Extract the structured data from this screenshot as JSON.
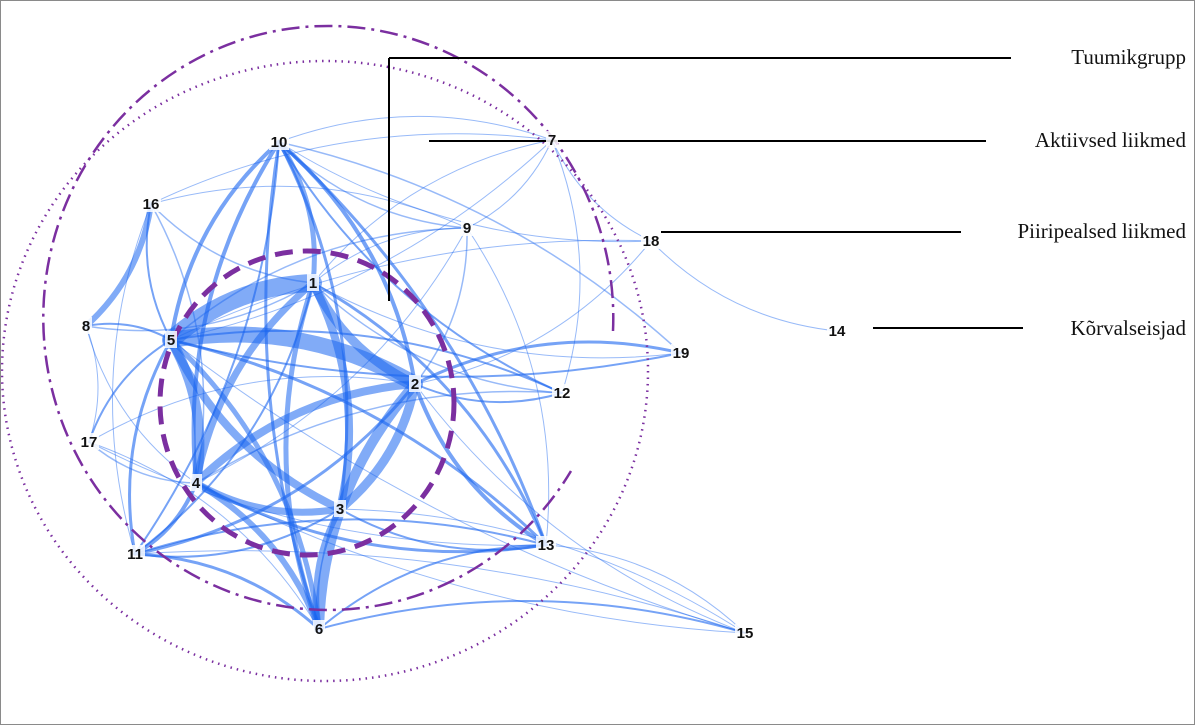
{
  "colors": {
    "edge": "#1a66f0",
    "circle": "#7b2fa0",
    "line": "#000000",
    "text": "#111111"
  },
  "nodes": [
    {
      "id": "1",
      "label": "1",
      "group": "core"
    },
    {
      "id": "2",
      "label": "2",
      "group": "core"
    },
    {
      "id": "3",
      "label": "3",
      "group": "core"
    },
    {
      "id": "4",
      "label": "4",
      "group": "core"
    },
    {
      "id": "5",
      "label": "5",
      "group": "core"
    },
    {
      "id": "6",
      "label": "6",
      "group": "active"
    },
    {
      "id": "7",
      "label": "7",
      "group": "active"
    },
    {
      "id": "8",
      "label": "8",
      "group": "active"
    },
    {
      "id": "9",
      "label": "9",
      "group": "active"
    },
    {
      "id": "10",
      "label": "10",
      "group": "active"
    },
    {
      "id": "11",
      "label": "11",
      "group": "active"
    },
    {
      "id": "12",
      "label": "12",
      "group": "active"
    },
    {
      "id": "13",
      "label": "13",
      "group": "active"
    },
    {
      "id": "16",
      "label": "16",
      "group": "active"
    },
    {
      "id": "17",
      "label": "17",
      "group": "active"
    },
    {
      "id": "18",
      "label": "18",
      "group": "peripheral"
    },
    {
      "id": "19",
      "label": "19",
      "group": "peripheral"
    },
    {
      "id": "15",
      "label": "15",
      "group": "peripheral"
    },
    {
      "id": "14",
      "label": "14",
      "group": "outsider"
    }
  ],
  "edges": [
    [
      "1",
      "5",
      18
    ],
    [
      "5",
      "2",
      16
    ],
    [
      "1",
      "2",
      9
    ],
    [
      "1",
      "3",
      8
    ],
    [
      "1",
      "4",
      7
    ],
    [
      "5",
      "4",
      10
    ],
    [
      "5",
      "3",
      8
    ],
    [
      "2",
      "3",
      9
    ],
    [
      "2",
      "4",
      8
    ],
    [
      "3",
      "4",
      7
    ],
    [
      "2",
      "6",
      10
    ],
    [
      "4",
      "6",
      6
    ],
    [
      "1",
      "6",
      5
    ],
    [
      "5",
      "6",
      5
    ],
    [
      "3",
      "6",
      6
    ],
    [
      "10",
      "1",
      5
    ],
    [
      "10",
      "5",
      4
    ],
    [
      "10",
      "2",
      4
    ],
    [
      "10",
      "4",
      4
    ],
    [
      "10",
      "3",
      3
    ],
    [
      "10",
      "6",
      3
    ],
    [
      "10",
      "13",
      3
    ],
    [
      "10",
      "12",
      2
    ],
    [
      "10",
      "11",
      2
    ],
    [
      "10",
      "9",
      1.5
    ],
    [
      "16",
      "8",
      6
    ],
    [
      "16",
      "5",
      2
    ],
    [
      "16",
      "4",
      1.5
    ],
    [
      "16",
      "1",
      1.5
    ],
    [
      "16",
      "9",
      1
    ],
    [
      "16",
      "11",
      1
    ],
    [
      "8",
      "5",
      2
    ],
    [
      "8",
      "1",
      1.5
    ],
    [
      "8",
      "17",
      1
    ],
    [
      "8",
      "4",
      1
    ],
    [
      "17",
      "5",
      2
    ],
    [
      "17",
      "4",
      1.5
    ],
    [
      "17",
      "2",
      1
    ],
    [
      "17",
      "13",
      1
    ],
    [
      "17",
      "6",
      1
    ],
    [
      "11",
      "4",
      4
    ],
    [
      "11",
      "5",
      3
    ],
    [
      "11",
      "2",
      3
    ],
    [
      "11",
      "6",
      3
    ],
    [
      "11",
      "3",
      2
    ],
    [
      "11",
      "13",
      2
    ],
    [
      "11",
      "1",
      2
    ],
    [
      "13",
      "2",
      4
    ],
    [
      "13",
      "1",
      3
    ],
    [
      "13",
      "4",
      3
    ],
    [
      "13",
      "5",
      3
    ],
    [
      "13",
      "3",
      2
    ],
    [
      "13",
      "6",
      2
    ],
    [
      "13",
      "15",
      1
    ],
    [
      "12",
      "5",
      2
    ],
    [
      "12",
      "2",
      2
    ],
    [
      "12",
      "4",
      1.5
    ],
    [
      "12",
      "1",
      1.5
    ],
    [
      "19",
      "2",
      3
    ],
    [
      "19",
      "5",
      2
    ],
    [
      "19",
      "10",
      1.5
    ],
    [
      "19",
      "1",
      1
    ],
    [
      "9",
      "5",
      1.5
    ],
    [
      "9",
      "2",
      1.5
    ],
    [
      "9",
      "1",
      1
    ],
    [
      "9",
      "4",
      1
    ],
    [
      "9",
      "7",
      1
    ],
    [
      "9",
      "13",
      1
    ],
    [
      "7",
      "10",
      1
    ],
    [
      "7",
      "5",
      1
    ],
    [
      "7",
      "1",
      1
    ],
    [
      "7",
      "12",
      1
    ],
    [
      "7",
      "16",
      1
    ],
    [
      "18",
      "10",
      1
    ],
    [
      "18",
      "5",
      1
    ],
    [
      "18",
      "7",
      1
    ],
    [
      "18",
      "14",
      1
    ],
    [
      "18",
      "2",
      1
    ],
    [
      "15",
      "6",
      2
    ],
    [
      "15",
      "4",
      1
    ],
    [
      "15",
      "3",
      1
    ],
    [
      "15",
      "2",
      1
    ],
    [
      "15",
      "11",
      1
    ],
    [
      "15",
      "5",
      1
    ]
  ],
  "legend": [
    {
      "key": "core",
      "label": "Tuumikgrupp"
    },
    {
      "key": "active",
      "label": "Aktiivsed liikmed"
    },
    {
      "key": "peripheral",
      "label": "Piiripealsed liikmed"
    },
    {
      "key": "outsider",
      "label": "Kõrvalseisjad"
    }
  ]
}
